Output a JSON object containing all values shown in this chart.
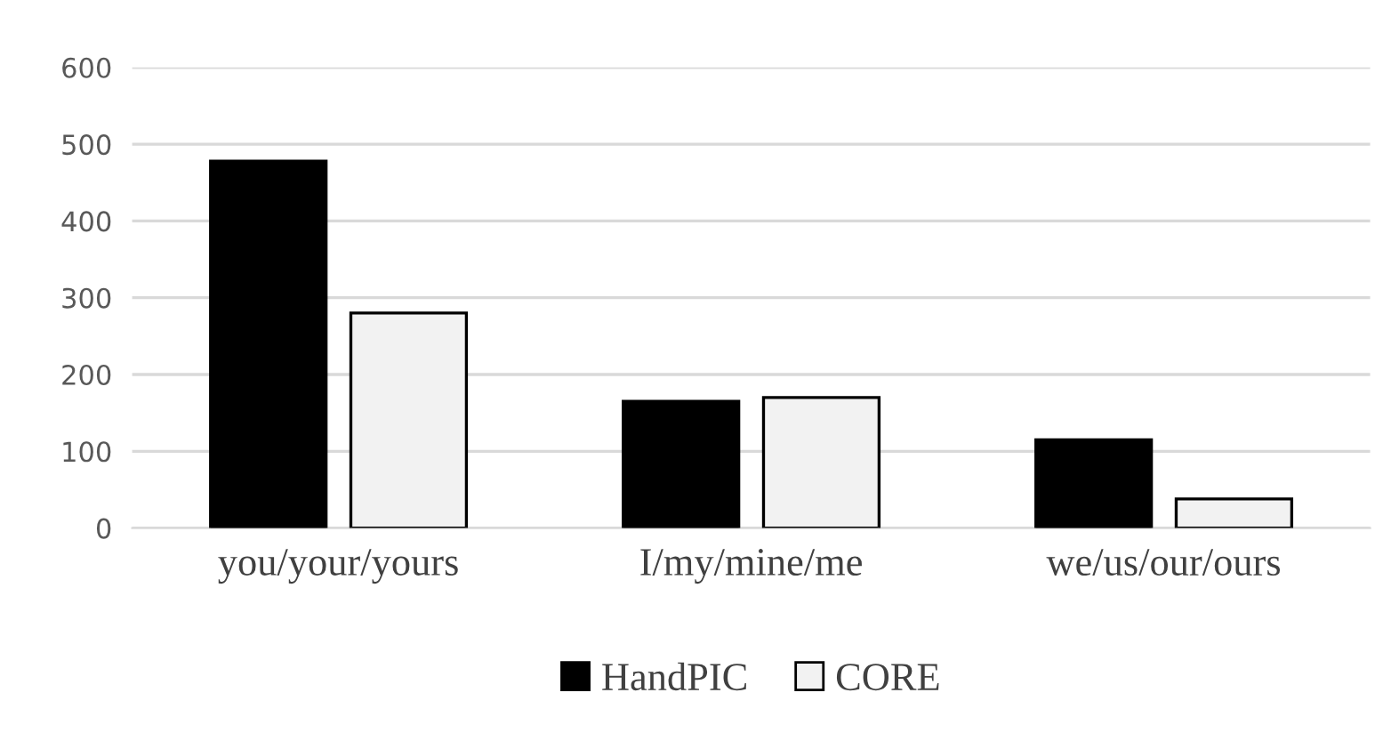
{
  "chart_data": {
    "type": "bar",
    "categories": [
      "you/your/yours",
      "I/my/mine/me",
      "we/us/our/ours"
    ],
    "series": [
      {
        "name": "HandPIC",
        "color": "#000000",
        "values": [
          478,
          165,
          115
        ]
      },
      {
        "name": "CORE",
        "color": "#f2f2f2",
        "values": [
          280,
          170,
          38
        ]
      }
    ],
    "ylim": [
      0,
      600
    ],
    "yticks": [
      0,
      100,
      200,
      300,
      400,
      500,
      600
    ],
    "grid": "y",
    "legend": "bottom"
  }
}
